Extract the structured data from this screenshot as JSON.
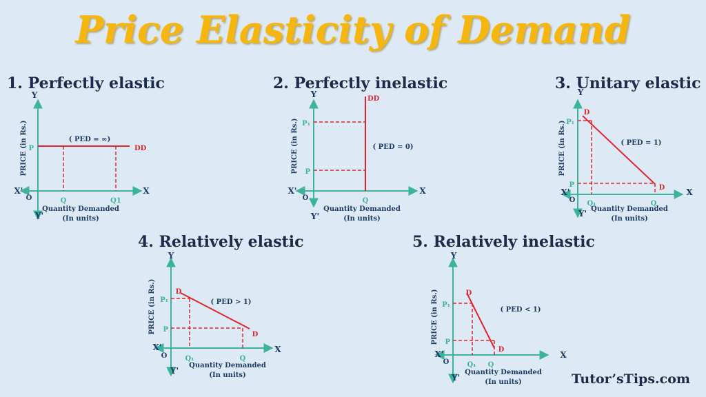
{
  "title": "Price Elasticity of Demand",
  "panels": [
    {
      "heading": "1. Perfectly elastic",
      "y_axis_title": "PRICE (in Rs.)",
      "x_axis_title": [
        "Quantity Demanded",
        "(In units)"
      ],
      "axis_labels": [
        "Y",
        "X",
        "X'",
        "Y'",
        "O"
      ],
      "labels": [
        "P",
        "Q",
        "Q1",
        "DD",
        "( PED = ∞)"
      ]
    },
    {
      "heading": "2. Perfectly inelastic",
      "y_axis_title": "PRICE (in Rs.)",
      "x_axis_title": [
        "Quantity Demanded",
        "(In units)"
      ],
      "axis_labels": [
        "Y",
        "X",
        "X'",
        "Y'",
        "O"
      ],
      "labels": [
        "P₁",
        "P",
        "Q",
        "DD",
        "( PED = 0)"
      ]
    },
    {
      "heading": "3. Unitary elastic",
      "y_axis_title": "PRICE (in Rs.)",
      "x_axis_title": [
        "Quantity Demanded",
        "(In units)"
      ],
      "axis_labels": [
        "Y",
        "X",
        "X'",
        "Y'",
        "O"
      ],
      "labels": [
        "P₁",
        "P",
        "Q₁",
        "Q",
        "D",
        "D",
        "( PED = 1)"
      ]
    },
    {
      "heading": "4. Relatively elastic",
      "y_axis_title": "PRICE (in Rs.)",
      "x_axis_title": [
        "Quantity Demanded",
        "(In units)"
      ],
      "axis_labels": [
        "Y",
        "X",
        "X'",
        "Y'",
        "O"
      ],
      "labels": [
        "P₁",
        "P",
        "Q₁",
        "Q",
        "D",
        "D",
        "( PED > 1)"
      ]
    },
    {
      "heading": "5. Relatively inelastic",
      "y_axis_title": "PRICE (in Rs.)",
      "x_axis_title": [
        "Quantity Demanded",
        "(In units)"
      ],
      "axis_labels": [
        "Y",
        "X",
        "X'",
        "Y'",
        "O"
      ],
      "labels": [
        "P₁",
        "P",
        "Q₁",
        "Q",
        "D",
        "D",
        "( PED < 1)"
      ]
    }
  ],
  "brand": "Tutor’sTips.com"
}
